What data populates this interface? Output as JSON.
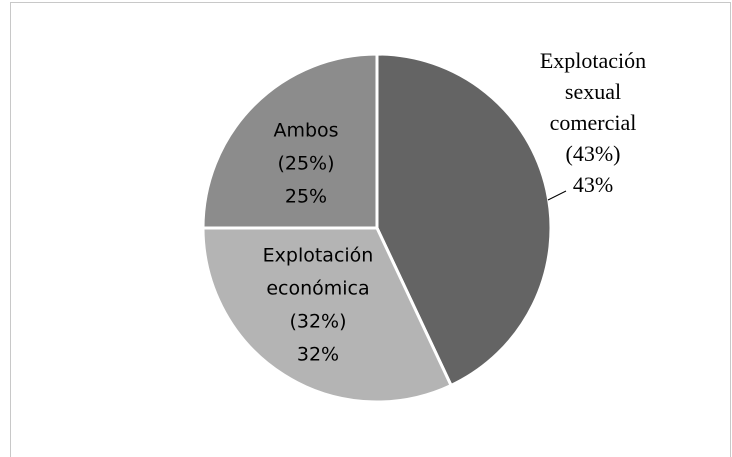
{
  "chart_data": {
    "type": "pie",
    "categories": [
      [
        "Explotación",
        "sexual",
        "comercial",
        "(43%)"
      ],
      [
        "Explotación",
        "económica",
        "(32%)"
      ],
      [
        "Ambos",
        "(25%)"
      ]
    ],
    "values": [
      43,
      32,
      25
    ],
    "value_labels": [
      "43%",
      "32%",
      "25%"
    ],
    "colors": [
      "#646464",
      "#b4b4b4",
      "#8c8c8c"
    ]
  }
}
